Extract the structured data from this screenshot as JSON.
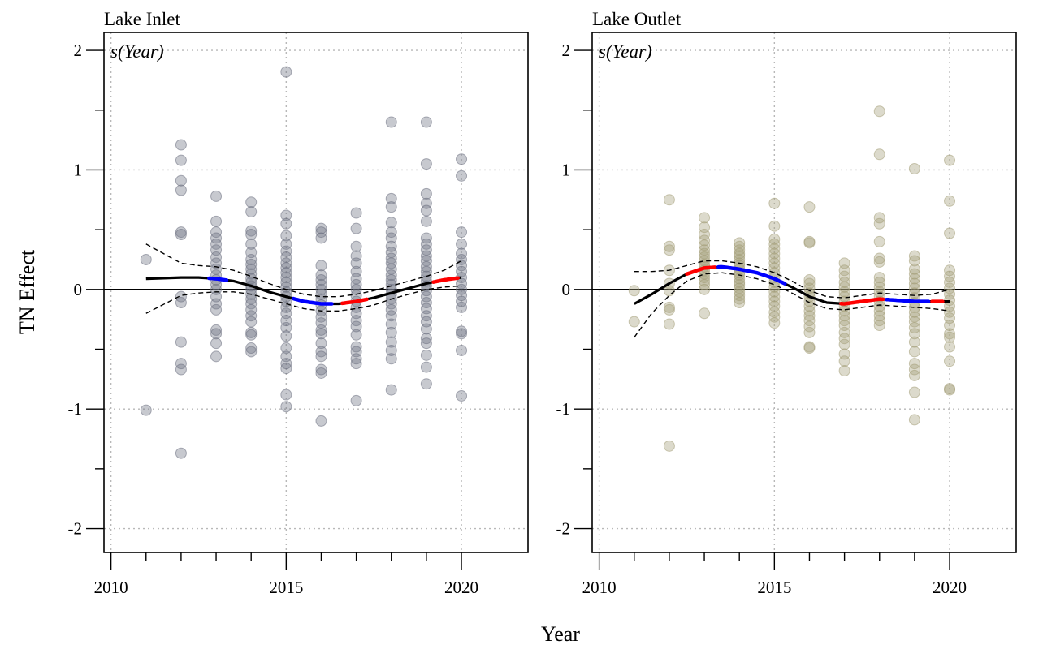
{
  "figure": {
    "xlabel": "Year",
    "ylabel": "TN Effect",
    "xticks": [
      2010,
      2015,
      2020
    ],
    "yticks": [
      2,
      1,
      0,
      -1,
      -2
    ],
    "xlim": [
      2009.8,
      2021.9
    ],
    "ylim": [
      -2.2,
      2.15
    ]
  },
  "chart_data": [
    {
      "type": "scatter",
      "title": "Lake Inlet",
      "annotation": "s(Year)",
      "point_color": "#6b7080",
      "grid": true,
      "smooth": {
        "x": [
          2011.0,
          2012.0,
          2012.5,
          2013.0,
          2013.5,
          2014.0,
          2014.5,
          2015.0,
          2015.5,
          2016.0,
          2016.5,
          2017.0,
          2017.5,
          2018.0,
          2018.5,
          2019.0,
          2019.5,
          2020.0
        ],
        "y": [
          0.09,
          0.1,
          0.1,
          0.09,
          0.07,
          0.03,
          -0.02,
          -0.06,
          -0.1,
          -0.12,
          -0.12,
          -0.1,
          -0.07,
          -0.03,
          0.01,
          0.05,
          0.08,
          0.1
        ],
        "lower": [
          -0.2,
          -0.05,
          -0.03,
          -0.02,
          -0.02,
          -0.04,
          -0.08,
          -0.12,
          -0.16,
          -0.18,
          -0.18,
          -0.16,
          -0.13,
          -0.08,
          -0.04,
          0.0,
          0.02,
          0.03
        ],
        "upper": [
          0.38,
          0.22,
          0.2,
          0.19,
          0.16,
          0.11,
          0.05,
          0.0,
          -0.04,
          -0.06,
          -0.06,
          -0.04,
          -0.01,
          0.03,
          0.07,
          0.11,
          0.16,
          0.24
        ],
        "increasing_color": "#ff0000",
        "decreasing_color": "#0000ff",
        "base_color": "#000000",
        "increasing": [
          [
            2016.6,
            2017.3
          ],
          [
            2019.2,
            2019.9
          ]
        ],
        "decreasing": [
          [
            2012.8,
            2013.3
          ],
          [
            2015.2,
            2016.3
          ]
        ]
      },
      "points": {
        "2011": [
          0.25,
          -1.01
        ],
        "2012": [
          1.21,
          1.08,
          0.91,
          0.83,
          0.48,
          0.46,
          -0.06,
          -0.11,
          -0.44,
          -0.62,
          -0.67,
          -1.37
        ],
        "2013": [
          0.78,
          0.57,
          0.48,
          0.43,
          0.38,
          0.33,
          0.27,
          0.22,
          0.17,
          0.12,
          0.08,
          0.04,
          0.0,
          -0.06,
          -0.12,
          -0.17,
          -0.34,
          -0.37,
          -0.45,
          -0.56
        ],
        "2014": [
          0.73,
          0.65,
          0.49,
          0.46,
          0.38,
          0.31,
          0.25,
          0.21,
          0.17,
          0.13,
          0.09,
          0.06,
          0.03,
          0.0,
          -0.04,
          -0.08,
          -0.12,
          -0.17,
          -0.22,
          -0.27,
          -0.36,
          -0.38,
          -0.49,
          -0.52
        ],
        "2015": [
          1.82,
          0.62,
          0.55,
          0.45,
          0.38,
          0.32,
          0.27,
          0.22,
          0.18,
          0.14,
          0.1,
          0.06,
          0.02,
          -0.02,
          -0.06,
          -0.1,
          -0.15,
          -0.2,
          -0.26,
          -0.32,
          -0.39,
          -0.49,
          -0.56,
          -0.62,
          -0.66,
          -0.88,
          -0.98
        ],
        "2016": [
          0.51,
          0.48,
          0.43,
          0.2,
          0.12,
          0.08,
          0.04,
          0.0,
          -0.04,
          -0.08,
          -0.13,
          -0.18,
          -0.23,
          -0.28,
          -0.34,
          -0.37,
          -0.45,
          -0.52,
          -0.56,
          -0.67,
          -0.7,
          -1.1
        ],
        "2017": [
          0.64,
          0.51,
          0.36,
          0.28,
          0.22,
          0.15,
          0.09,
          0.04,
          0.0,
          -0.05,
          -0.1,
          -0.15,
          -0.2,
          -0.26,
          -0.31,
          -0.38,
          -0.48,
          -0.52,
          -0.58,
          -0.62,
          -0.93
        ],
        "2018": [
          1.4,
          0.76,
          0.69,
          0.56,
          0.48,
          0.43,
          0.36,
          0.31,
          0.26,
          0.22,
          0.17,
          0.12,
          0.08,
          0.04,
          0.0,
          -0.04,
          -0.08,
          -0.12,
          -0.17,
          -0.22,
          -0.29,
          -0.36,
          -0.44,
          -0.51,
          -0.58,
          -0.84
        ],
        "2019": [
          1.4,
          1.05,
          0.8,
          0.72,
          0.66,
          0.57,
          0.43,
          0.38,
          0.33,
          0.28,
          0.24,
          0.19,
          0.15,
          0.11,
          0.07,
          0.03,
          -0.01,
          -0.06,
          -0.11,
          -0.16,
          -0.22,
          -0.27,
          -0.33,
          -0.41,
          -0.45,
          -0.55,
          -0.65,
          -0.79
        ],
        "2020": [
          1.09,
          0.95,
          0.48,
          0.38,
          0.3,
          0.25,
          0.2,
          0.15,
          0.1,
          0.05,
          0.0,
          -0.05,
          -0.1,
          -0.15,
          -0.35,
          -0.37,
          -0.51,
          -0.89
        ]
      }
    },
    {
      "type": "scatter",
      "title": "Lake Outlet",
      "annotation": "s(Year)",
      "point_color": "#a49e78",
      "grid": true,
      "smooth": {
        "x": [
          2011.0,
          2011.5,
          2012.0,
          2012.5,
          2013.0,
          2013.5,
          2014.0,
          2014.5,
          2015.0,
          2015.5,
          2016.0,
          2016.5,
          2017.0,
          2017.5,
          2018.0,
          2018.5,
          2019.0,
          2019.5,
          2020.0
        ],
        "y": [
          -0.12,
          -0.04,
          0.05,
          0.13,
          0.18,
          0.19,
          0.17,
          0.14,
          0.09,
          0.02,
          -0.06,
          -0.11,
          -0.12,
          -0.1,
          -0.08,
          -0.09,
          -0.1,
          -0.1,
          -0.1
        ],
        "lower": [
          -0.4,
          -0.2,
          -0.05,
          0.07,
          0.13,
          0.14,
          0.12,
          0.09,
          0.04,
          -0.03,
          -0.11,
          -0.16,
          -0.17,
          -0.15,
          -0.13,
          -0.14,
          -0.15,
          -0.16,
          -0.18
        ],
        "upper": [
          0.15,
          0.15,
          0.16,
          0.2,
          0.24,
          0.24,
          0.22,
          0.19,
          0.14,
          0.07,
          -0.01,
          -0.06,
          -0.07,
          -0.05,
          -0.03,
          -0.04,
          -0.05,
          -0.04,
          0.0
        ],
        "increasing_color": "#ff0000",
        "decreasing_color": "#0000ff",
        "base_color": "#000000",
        "increasing": [
          [
            2012.5,
            2013.3
          ],
          [
            2016.9,
            2018.1
          ],
          [
            2019.5,
            2019.8
          ]
        ],
        "decreasing": [
          [
            2013.4,
            2015.3
          ],
          [
            2018.2,
            2019.4
          ]
        ]
      },
      "points": {
        "2011": [
          -0.01,
          -0.27
        ],
        "2012": [
          0.75,
          0.36,
          0.33,
          0.16,
          0.05,
          -0.01,
          -0.15,
          -0.17,
          -0.29,
          -1.31
        ],
        "2013": [
          0.6,
          0.52,
          0.46,
          0.41,
          0.37,
          0.33,
          0.3,
          0.27,
          0.24,
          0.21,
          0.19,
          0.16,
          0.13,
          0.1,
          0.07,
          0.04,
          0.0,
          -0.2
        ],
        "2014": [
          0.39,
          0.36,
          0.33,
          0.3,
          0.28,
          0.25,
          0.22,
          0.2,
          0.17,
          0.14,
          0.12,
          0.09,
          0.06,
          0.04,
          0.01,
          -0.02,
          -0.05,
          -0.08,
          -0.11
        ],
        "2015": [
          0.72,
          0.53,
          0.42,
          0.38,
          0.34,
          0.3,
          0.26,
          0.22,
          0.18,
          0.14,
          0.1,
          0.06,
          0.02,
          -0.02,
          -0.06,
          -0.1,
          -0.14,
          -0.19,
          -0.23,
          -0.28
        ],
        "2016": [
          0.69,
          0.4,
          0.39,
          0.08,
          0.05,
          0.01,
          -0.03,
          -0.06,
          -0.1,
          -0.14,
          -0.18,
          -0.22,
          -0.26,
          -0.31,
          -0.36,
          -0.48,
          -0.49
        ],
        "2017": [
          0.22,
          0.16,
          0.11,
          0.06,
          0.02,
          -0.02,
          -0.06,
          -0.1,
          -0.14,
          -0.18,
          -0.22,
          -0.26,
          -0.3,
          -0.36,
          -0.41,
          -0.46,
          -0.54,
          -0.6,
          -0.68
        ],
        "2018": [
          1.49,
          1.13,
          0.6,
          0.55,
          0.4,
          0.26,
          0.23,
          0.1,
          0.06,
          0.02,
          -0.02,
          -0.06,
          -0.1,
          -0.14,
          -0.18,
          -0.22,
          -0.26,
          -0.3
        ],
        "2019": [
          1.01,
          0.28,
          0.24,
          0.17,
          0.13,
          0.09,
          0.05,
          0.01,
          -0.03,
          -0.07,
          -0.11,
          -0.15,
          -0.19,
          -0.23,
          -0.27,
          -0.32,
          -0.37,
          -0.44,
          -0.52,
          -0.62,
          -0.67,
          -0.72,
          -0.86,
          -1.09
        ],
        "2020": [
          1.08,
          0.74,
          0.47,
          0.16,
          0.11,
          0.06,
          0.01,
          -0.04,
          -0.09,
          -0.14,
          -0.19,
          -0.24,
          -0.3,
          -0.37,
          -0.4,
          -0.48,
          -0.6,
          -0.83,
          -0.84
        ]
      }
    }
  ]
}
